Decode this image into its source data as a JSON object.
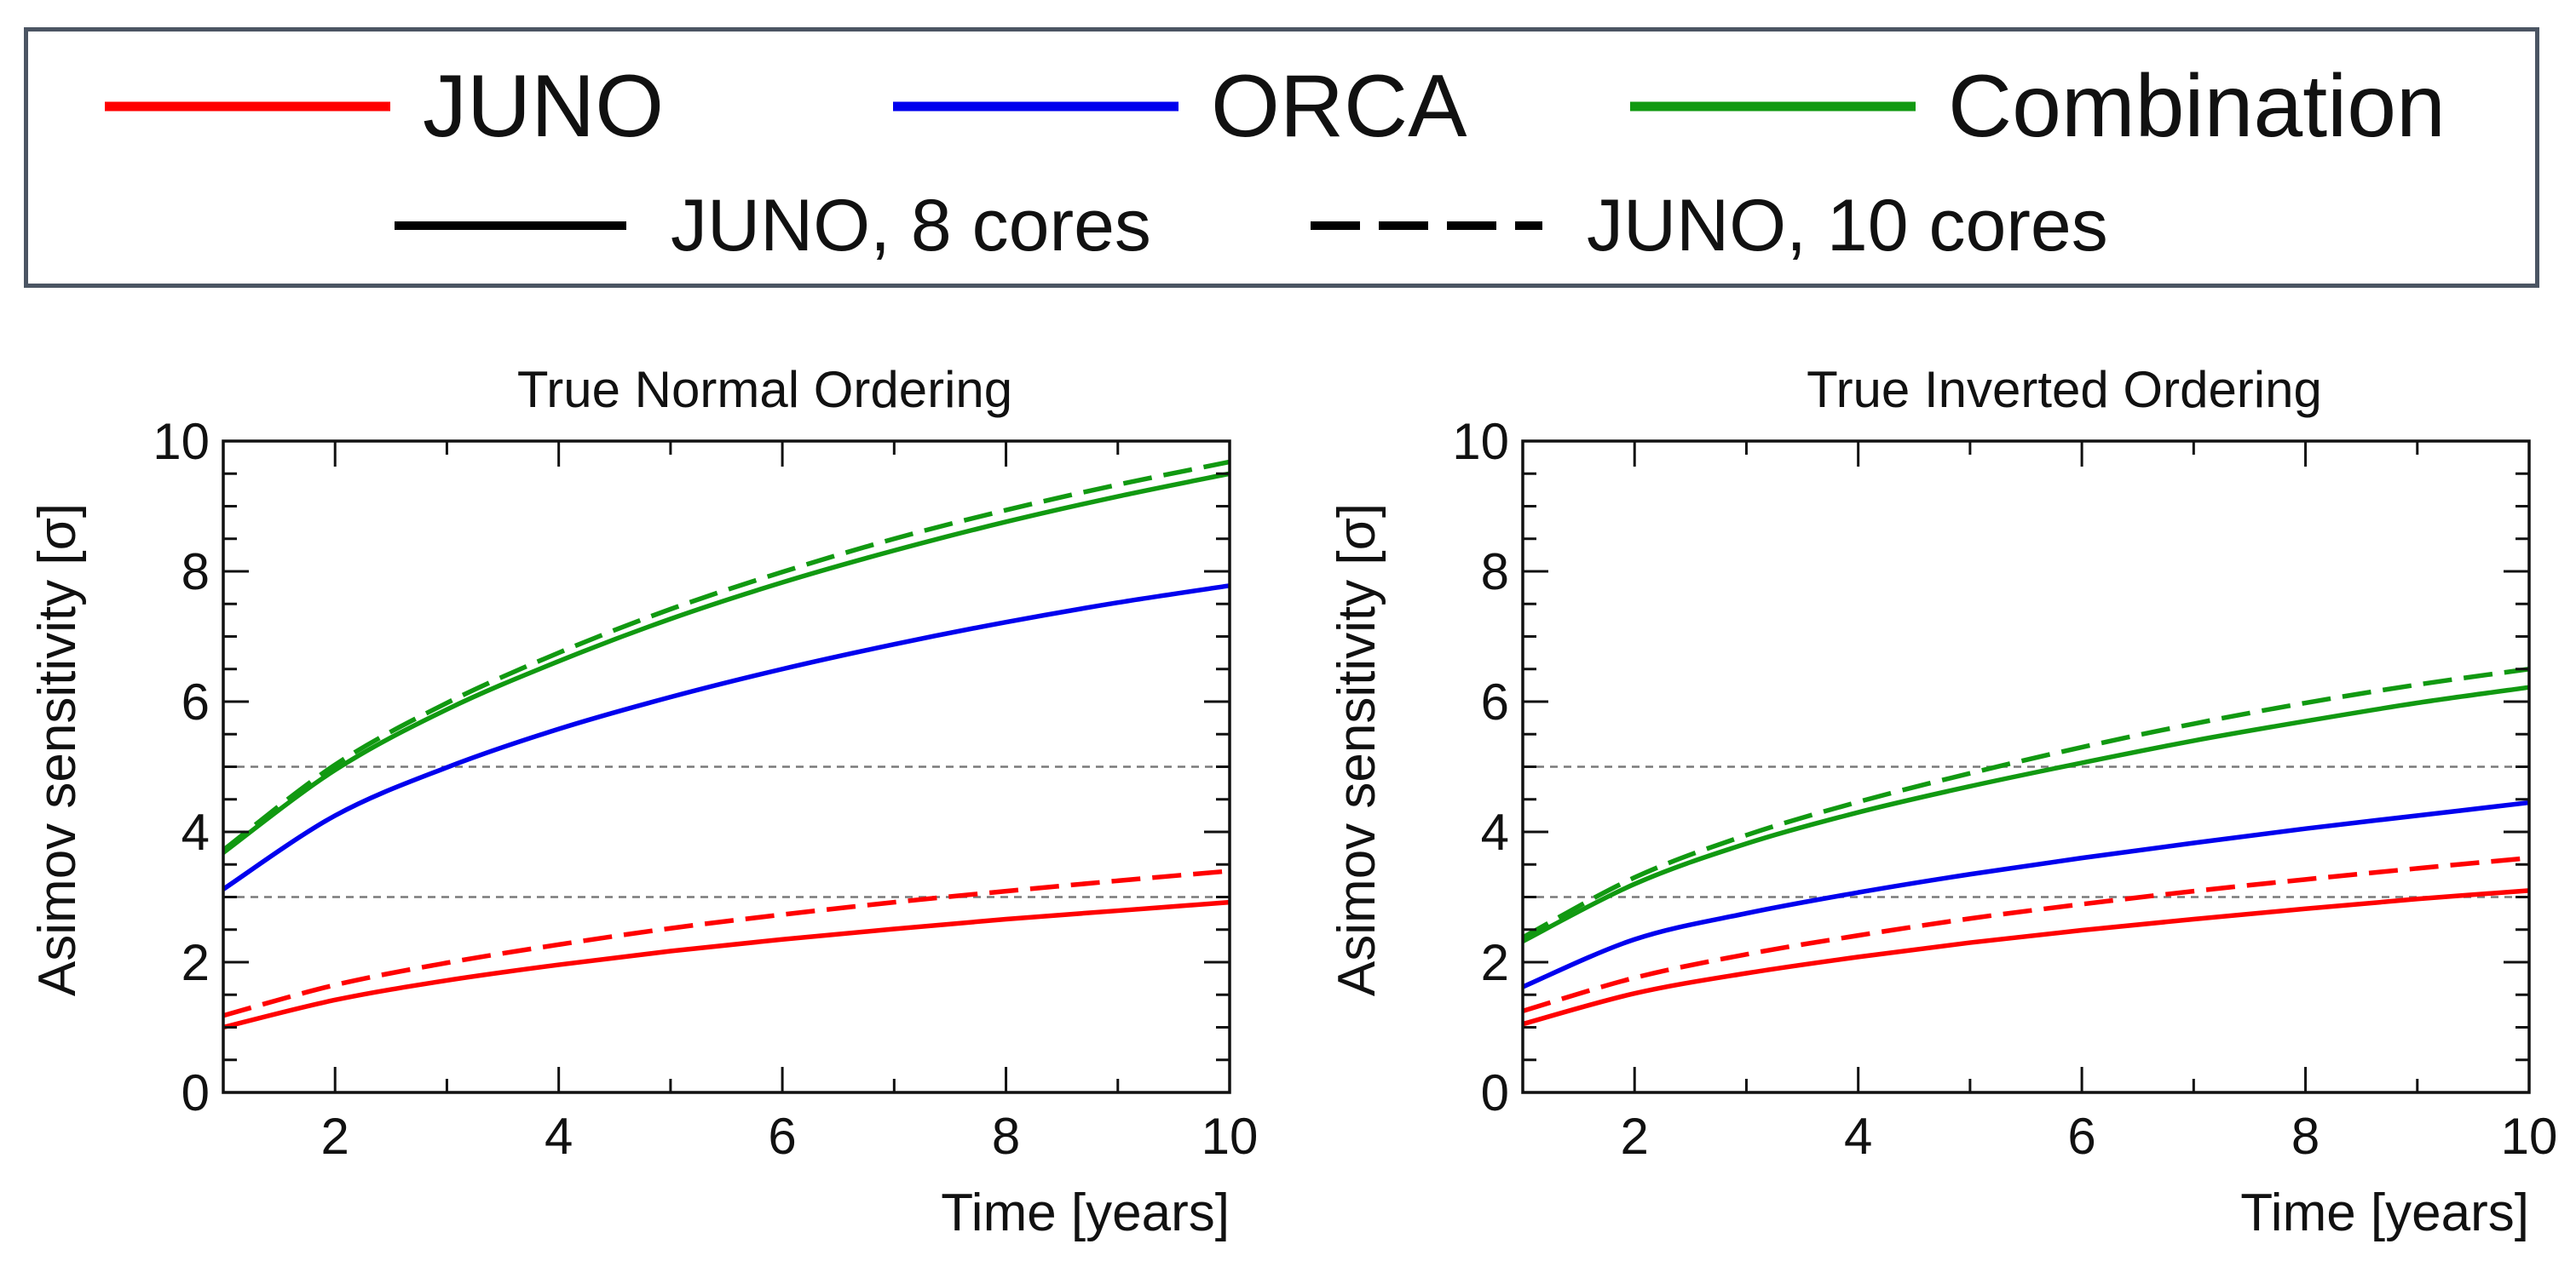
{
  "legend": {
    "row1": [
      {
        "label": "JUNO",
        "color": "#ff0000",
        "style": "solid"
      },
      {
        "label": "ORCA",
        "color": "#0000ee",
        "style": "solid"
      },
      {
        "label": "Combination",
        "color": "#119911",
        "style": "solid"
      }
    ],
    "row2": [
      {
        "label": "JUNO, 8 cores",
        "color": "#000000",
        "style": "solid"
      },
      {
        "label": "JUNO, 10 cores",
        "color": "#000000",
        "style": "dashed"
      }
    ]
  },
  "chart_data": [
    {
      "type": "line",
      "title": "True Normal Ordering",
      "xlabel": "Time [years]",
      "ylabel": "Asimov sensitivity [σ]",
      "xlim": [
        1,
        10
      ],
      "ylim": [
        0,
        10
      ],
      "xticks": [
        2,
        4,
        6,
        8,
        10
      ],
      "yticks": [
        0,
        2,
        4,
        6,
        8,
        10
      ],
      "reference_lines": [
        3,
        5
      ],
      "x": [
        1,
        2,
        3,
        4,
        5,
        6,
        7,
        8,
        9,
        10
      ],
      "series": [
        {
          "name": "JUNO, 8 cores",
          "color": "#ff0000",
          "dash": false,
          "values": [
            1.0,
            1.42,
            1.72,
            1.96,
            2.17,
            2.35,
            2.51,
            2.66,
            2.79,
            2.92
          ]
        },
        {
          "name": "JUNO, 10 cores",
          "color": "#ff0000",
          "dash": true,
          "values": [
            1.18,
            1.65,
            1.99,
            2.27,
            2.52,
            2.73,
            2.92,
            3.09,
            3.25,
            3.4
          ]
        },
        {
          "name": "ORCA",
          "color": "#0000ee",
          "dash": false,
          "values": [
            3.12,
            4.25,
            4.99,
            5.58,
            6.07,
            6.5,
            6.88,
            7.22,
            7.52,
            7.78
          ]
        },
        {
          "name": "Combination, 8 cores",
          "color": "#119911",
          "dash": false,
          "values": [
            3.68,
            4.95,
            5.88,
            6.62,
            7.27,
            7.83,
            8.32,
            8.76,
            9.15,
            9.5
          ]
        },
        {
          "name": "Combination, 10 cores",
          "color": "#119911",
          "dash": true,
          "values": [
            3.72,
            5.03,
            5.98,
            6.75,
            7.42,
            7.99,
            8.5,
            8.94,
            9.33,
            9.68
          ]
        }
      ]
    },
    {
      "type": "line",
      "title": "True Inverted Ordering",
      "xlabel": "Time [years]",
      "ylabel": "Asimov sensitivity [σ]",
      "xlim": [
        1,
        10
      ],
      "ylim": [
        0,
        10
      ],
      "xticks": [
        2,
        4,
        6,
        8,
        10
      ],
      "yticks": [
        0,
        2,
        4,
        6,
        8,
        10
      ],
      "reference_lines": [
        3,
        5
      ],
      "x": [
        1,
        2,
        3,
        4,
        5,
        6,
        7,
        8,
        9,
        10
      ],
      "series": [
        {
          "name": "JUNO, 8 cores",
          "color": "#ff0000",
          "dash": false,
          "values": [
            1.05,
            1.52,
            1.83,
            2.08,
            2.3,
            2.49,
            2.66,
            2.82,
            2.97,
            3.1
          ]
        },
        {
          "name": "JUNO, 10 cores",
          "color": "#ff0000",
          "dash": true,
          "values": [
            1.25,
            1.76,
            2.12,
            2.41,
            2.67,
            2.89,
            3.09,
            3.27,
            3.44,
            3.6
          ]
        },
        {
          "name": "ORCA",
          "color": "#0000ee",
          "dash": false,
          "values": [
            1.62,
            2.35,
            2.75,
            3.07,
            3.35,
            3.6,
            3.83,
            4.05,
            4.25,
            4.45
          ]
        },
        {
          "name": "Combination, 8 cores",
          "color": "#119911",
          "dash": false,
          "values": [
            2.32,
            3.2,
            3.82,
            4.3,
            4.7,
            5.06,
            5.4,
            5.7,
            5.98,
            6.22
          ]
        },
        {
          "name": "Combination, 10 cores",
          "color": "#119911",
          "dash": true,
          "values": [
            2.38,
            3.3,
            3.95,
            4.46,
            4.9,
            5.3,
            5.66,
            5.98,
            6.26,
            6.5
          ]
        }
      ]
    }
  ]
}
